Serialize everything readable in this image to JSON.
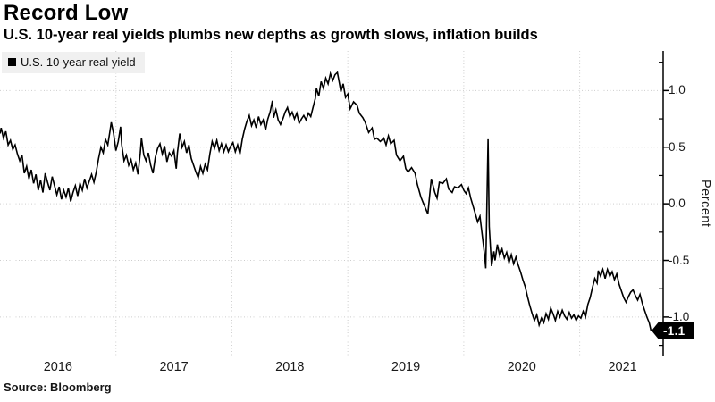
{
  "header": {
    "title": "Record Low",
    "subtitle": "U.S. 10-year real yields plumbs new depths as growth slows, inflation builds"
  },
  "legend": {
    "label": "U.S. 10-year real yield"
  },
  "source": {
    "text": "Source: Bloomberg"
  },
  "colors": {
    "line": "#000000",
    "grid": "#cdcdcd",
    "axis": "#000000",
    "legend_bg": "#f0f0f0",
    "badge_bg": "#000000",
    "badge_text": "#ffffff"
  },
  "chart_data": {
    "type": "line",
    "title": "Record Low",
    "subtitle": "U.S. 10-year real yields plumbs new depths as growth slows, inflation builds",
    "xlabel": "",
    "ylabel": "Percent",
    "legend_entries": [
      "U.S. 10-year real yield"
    ],
    "legend_position": "top-left",
    "grid": "dotted",
    "axis_side": "right",
    "x_range": [
      2016.0,
      2021.72
    ],
    "y_range": [
      -1.34,
      1.35
    ],
    "y_ticks_major": [
      1.0,
      0.5,
      0.0,
      -0.5,
      -1.0
    ],
    "y_tick_labels": [
      "1.0",
      "0.5",
      "0.0",
      "-0.5",
      "-1.0"
    ],
    "y_ticks_minor": [
      1.25,
      0.75,
      0.25,
      -0.25,
      -0.75,
      -1.25
    ],
    "x_gridlines": [
      2017,
      2018,
      2019,
      2020,
      2021
    ],
    "x_labels": [
      {
        "label": "2016",
        "t": 2016.5
      },
      {
        "label": "2017",
        "t": 2017.5
      },
      {
        "label": "2018",
        "t": 2018.5
      },
      {
        "label": "2019",
        "t": 2019.5
      },
      {
        "label": "2020",
        "t": 2020.5
      },
      {
        "label": "2021",
        "t": 2021.37
      }
    ],
    "end_label": "-1.1",
    "last_value": -1.12,
    "series": [
      {
        "name": "U.S. 10-year real yield",
        "color": "#000000",
        "points": [
          [
            2016.0,
            0.62
          ],
          [
            2016.01,
            0.67
          ],
          [
            2016.03,
            0.58
          ],
          [
            2016.05,
            0.64
          ],
          [
            2016.07,
            0.52
          ],
          [
            2016.09,
            0.56
          ],
          [
            2016.11,
            0.48
          ],
          [
            2016.13,
            0.52
          ],
          [
            2016.15,
            0.44
          ],
          [
            2016.17,
            0.38
          ],
          [
            2016.19,
            0.43
          ],
          [
            2016.21,
            0.27
          ],
          [
            2016.23,
            0.33
          ],
          [
            2016.25,
            0.22
          ],
          [
            2016.27,
            0.3
          ],
          [
            2016.29,
            0.18
          ],
          [
            2016.31,
            0.26
          ],
          [
            2016.33,
            0.12
          ],
          [
            2016.35,
            0.21
          ],
          [
            2016.37,
            0.1
          ],
          [
            2016.39,
            0.27
          ],
          [
            2016.41,
            0.19
          ],
          [
            2016.43,
            0.12
          ],
          [
            2016.45,
            0.24
          ],
          [
            2016.47,
            0.16
          ],
          [
            2016.49,
            0.08
          ],
          [
            2016.51,
            0.15
          ],
          [
            2016.53,
            0.04
          ],
          [
            2016.55,
            0.12
          ],
          [
            2016.57,
            0.06
          ],
          [
            2016.59,
            0.14
          ],
          [
            2016.61,
            0.02
          ],
          [
            2016.63,
            0.1
          ],
          [
            2016.65,
            0.16
          ],
          [
            2016.67,
            0.07
          ],
          [
            2016.69,
            0.18
          ],
          [
            2016.71,
            0.12
          ],
          [
            2016.73,
            0.22
          ],
          [
            2016.75,
            0.14
          ],
          [
            2016.77,
            0.2
          ],
          [
            2016.79,
            0.26
          ],
          [
            2016.81,
            0.19
          ],
          [
            2016.83,
            0.28
          ],
          [
            2016.85,
            0.4
          ],
          [
            2016.87,
            0.5
          ],
          [
            2016.89,
            0.45
          ],
          [
            2016.91,
            0.57
          ],
          [
            2016.93,
            0.52
          ],
          [
            2016.95,
            0.65
          ],
          [
            2016.96,
            0.72
          ],
          [
            2016.98,
            0.62
          ],
          [
            2017.0,
            0.47
          ],
          [
            2017.02,
            0.55
          ],
          [
            2017.04,
            0.68
          ],
          [
            2017.05,
            0.52
          ],
          [
            2017.07,
            0.38
          ],
          [
            2017.09,
            0.43
          ],
          [
            2017.11,
            0.34
          ],
          [
            2017.13,
            0.39
          ],
          [
            2017.15,
            0.3
          ],
          [
            2017.17,
            0.36
          ],
          [
            2017.19,
            0.26
          ],
          [
            2017.21,
            0.45
          ],
          [
            2017.22,
            0.58
          ],
          [
            2017.24,
            0.43
          ],
          [
            2017.26,
            0.38
          ],
          [
            2017.28,
            0.45
          ],
          [
            2017.3,
            0.34
          ],
          [
            2017.32,
            0.27
          ],
          [
            2017.34,
            0.41
          ],
          [
            2017.36,
            0.49
          ],
          [
            2017.38,
            0.53
          ],
          [
            2017.4,
            0.44
          ],
          [
            2017.42,
            0.51
          ],
          [
            2017.44,
            0.37
          ],
          [
            2017.46,
            0.45
          ],
          [
            2017.48,
            0.42
          ],
          [
            2017.5,
            0.47
          ],
          [
            2017.52,
            0.31
          ],
          [
            2017.53,
            0.45
          ],
          [
            2017.55,
            0.62
          ],
          [
            2017.57,
            0.5
          ],
          [
            2017.59,
            0.55
          ],
          [
            2017.61,
            0.45
          ],
          [
            2017.63,
            0.52
          ],
          [
            2017.65,
            0.4
          ],
          [
            2017.67,
            0.34
          ],
          [
            2017.69,
            0.28
          ],
          [
            2017.71,
            0.23
          ],
          [
            2017.73,
            0.33
          ],
          [
            2017.75,
            0.27
          ],
          [
            2017.77,
            0.35
          ],
          [
            2017.79,
            0.3
          ],
          [
            2017.81,
            0.44
          ],
          [
            2017.83,
            0.55
          ],
          [
            2017.85,
            0.49
          ],
          [
            2017.87,
            0.56
          ],
          [
            2017.89,
            0.47
          ],
          [
            2017.91,
            0.53
          ],
          [
            2017.93,
            0.46
          ],
          [
            2017.95,
            0.52
          ],
          [
            2017.97,
            0.46
          ],
          [
            2017.99,
            0.51
          ],
          [
            2018.01,
            0.54
          ],
          [
            2018.03,
            0.46
          ],
          [
            2018.05,
            0.52
          ],
          [
            2018.07,
            0.44
          ],
          [
            2018.09,
            0.57
          ],
          [
            2018.11,
            0.66
          ],
          [
            2018.13,
            0.73
          ],
          [
            2018.15,
            0.78
          ],
          [
            2018.17,
            0.69
          ],
          [
            2018.19,
            0.74
          ],
          [
            2018.21,
            0.67
          ],
          [
            2018.23,
            0.77
          ],
          [
            2018.25,
            0.7
          ],
          [
            2018.27,
            0.74
          ],
          [
            2018.29,
            0.65
          ],
          [
            2018.31,
            0.75
          ],
          [
            2018.33,
            0.81
          ],
          [
            2018.35,
            0.91
          ],
          [
            2018.36,
            0.76
          ],
          [
            2018.38,
            0.83
          ],
          [
            2018.4,
            0.74
          ],
          [
            2018.42,
            0.7
          ],
          [
            2018.44,
            0.75
          ],
          [
            2018.46,
            0.81
          ],
          [
            2018.48,
            0.85
          ],
          [
            2018.5,
            0.77
          ],
          [
            2018.52,
            0.81
          ],
          [
            2018.54,
            0.75
          ],
          [
            2018.56,
            0.8
          ],
          [
            2018.58,
            0.71
          ],
          [
            2018.6,
            0.75
          ],
          [
            2018.62,
            0.78
          ],
          [
            2018.64,
            0.74
          ],
          [
            2018.66,
            0.8
          ],
          [
            2018.68,
            0.77
          ],
          [
            2018.7,
            0.85
          ],
          [
            2018.72,
            0.93
          ],
          [
            2018.73,
            1.02
          ],
          [
            2018.75,
            0.95
          ],
          [
            2018.77,
            1.08
          ],
          [
            2018.79,
            1.02
          ],
          [
            2018.81,
            1.11
          ],
          [
            2018.83,
            1.06
          ],
          [
            2018.85,
            1.15
          ],
          [
            2018.87,
            1.09
          ],
          [
            2018.89,
            1.14
          ],
          [
            2018.91,
            1.16
          ],
          [
            2018.93,
            1.05
          ],
          [
            2018.94,
            0.99
          ],
          [
            2018.96,
            1.06
          ],
          [
            2018.98,
            0.94
          ],
          [
            2019.0,
            0.97
          ],
          [
            2019.02,
            0.84
          ],
          [
            2019.05,
            0.9
          ],
          [
            2019.08,
            0.87
          ],
          [
            2019.1,
            0.8
          ],
          [
            2019.13,
            0.76
          ],
          [
            2019.15,
            0.72
          ],
          [
            2019.18,
            0.63
          ],
          [
            2019.21,
            0.67
          ],
          [
            2019.23,
            0.57
          ],
          [
            2019.25,
            0.58
          ],
          [
            2019.28,
            0.55
          ],
          [
            2019.31,
            0.58
          ],
          [
            2019.33,
            0.52
          ],
          [
            2019.35,
            0.6
          ],
          [
            2019.37,
            0.53
          ],
          [
            2019.4,
            0.56
          ],
          [
            2019.42,
            0.43
          ],
          [
            2019.45,
            0.38
          ],
          [
            2019.48,
            0.42
          ],
          [
            2019.5,
            0.31
          ],
          [
            2019.52,
            0.28
          ],
          [
            2019.55,
            0.32
          ],
          [
            2019.58,
            0.27
          ],
          [
            2019.6,
            0.17
          ],
          [
            2019.63,
            0.06
          ],
          [
            2019.65,
            0.01
          ],
          [
            2019.67,
            -0.04
          ],
          [
            2019.69,
            -0.09
          ],
          [
            2019.72,
            0.22
          ],
          [
            2019.75,
            0.1
          ],
          [
            2019.77,
            0.05
          ],
          [
            2019.79,
            0.19
          ],
          [
            2019.82,
            0.18
          ],
          [
            2019.85,
            0.22
          ],
          [
            2019.87,
            0.13
          ],
          [
            2019.9,
            0.1
          ],
          [
            2019.92,
            0.15
          ],
          [
            2019.95,
            0.14
          ],
          [
            2019.98,
            0.17
          ],
          [
            2020.0,
            0.12
          ],
          [
            2020.02,
            0.09
          ],
          [
            2020.04,
            0.14
          ],
          [
            2020.06,
            0.05
          ],
          [
            2020.08,
            -0.02
          ],
          [
            2020.1,
            -0.09
          ],
          [
            2020.12,
            -0.16
          ],
          [
            2020.14,
            -0.11
          ],
          [
            2020.16,
            -0.28
          ],
          [
            2020.18,
            -0.45
          ],
          [
            2020.19,
            -0.57
          ],
          [
            2020.21,
            0.57
          ],
          [
            2020.22,
            -0.2
          ],
          [
            2020.24,
            -0.55
          ],
          [
            2020.26,
            -0.42
          ],
          [
            2020.27,
            -0.5
          ],
          [
            2020.29,
            -0.36
          ],
          [
            2020.31,
            -0.46
          ],
          [
            2020.33,
            -0.4
          ],
          [
            2020.35,
            -0.48
          ],
          [
            2020.37,
            -0.43
          ],
          [
            2020.39,
            -0.52
          ],
          [
            2020.41,
            -0.45
          ],
          [
            2020.43,
            -0.53
          ],
          [
            2020.45,
            -0.47
          ],
          [
            2020.47,
            -0.54
          ],
          [
            2020.49,
            -0.6
          ],
          [
            2020.51,
            -0.67
          ],
          [
            2020.53,
            -0.73
          ],
          [
            2020.55,
            -0.82
          ],
          [
            2020.57,
            -0.9
          ],
          [
            2020.59,
            -0.97
          ],
          [
            2020.61,
            -1.03
          ],
          [
            2020.63,
            -0.98
          ],
          [
            2020.65,
            -1.07
          ],
          [
            2020.67,
            -1.01
          ],
          [
            2020.69,
            -1.05
          ],
          [
            2020.71,
            -0.97
          ],
          [
            2020.73,
            -1.02
          ],
          [
            2020.75,
            -0.92
          ],
          [
            2020.77,
            -0.97
          ],
          [
            2020.79,
            -1.03
          ],
          [
            2020.81,
            -0.95
          ],
          [
            2020.83,
            -1.0
          ],
          [
            2020.85,
            -0.94
          ],
          [
            2020.87,
            -0.99
          ],
          [
            2020.89,
            -1.02
          ],
          [
            2020.91,
            -0.96
          ],
          [
            2020.93,
            -1.01
          ],
          [
            2020.95,
            -0.98
          ],
          [
            2020.97,
            -1.03
          ],
          [
            2020.99,
            -0.99
          ],
          [
            2021.01,
            -1.01
          ],
          [
            2021.03,
            -0.95
          ],
          [
            2021.05,
            -1.0
          ],
          [
            2021.07,
            -0.89
          ],
          [
            2021.09,
            -0.83
          ],
          [
            2021.11,
            -0.74
          ],
          [
            2021.13,
            -0.66
          ],
          [
            2021.15,
            -0.7
          ],
          [
            2021.16,
            -0.59
          ],
          [
            2021.18,
            -0.64
          ],
          [
            2021.2,
            -0.58
          ],
          [
            2021.22,
            -0.66
          ],
          [
            2021.24,
            -0.58
          ],
          [
            2021.26,
            -0.64
          ],
          [
            2021.28,
            -0.6
          ],
          [
            2021.3,
            -0.67
          ],
          [
            2021.32,
            -0.62
          ],
          [
            2021.34,
            -0.71
          ],
          [
            2021.36,
            -0.77
          ],
          [
            2021.38,
            -0.83
          ],
          [
            2021.4,
            -0.87
          ],
          [
            2021.42,
            -0.82
          ],
          [
            2021.44,
            -0.78
          ],
          [
            2021.46,
            -0.76
          ],
          [
            2021.48,
            -0.81
          ],
          [
            2021.5,
            -0.85
          ],
          [
            2021.52,
            -0.8
          ],
          [
            2021.54,
            -0.88
          ],
          [
            2021.56,
            -0.94
          ],
          [
            2021.58,
            -1.0
          ],
          [
            2021.6,
            -1.05
          ],
          [
            2021.615,
            -1.12
          ]
        ]
      }
    ]
  }
}
